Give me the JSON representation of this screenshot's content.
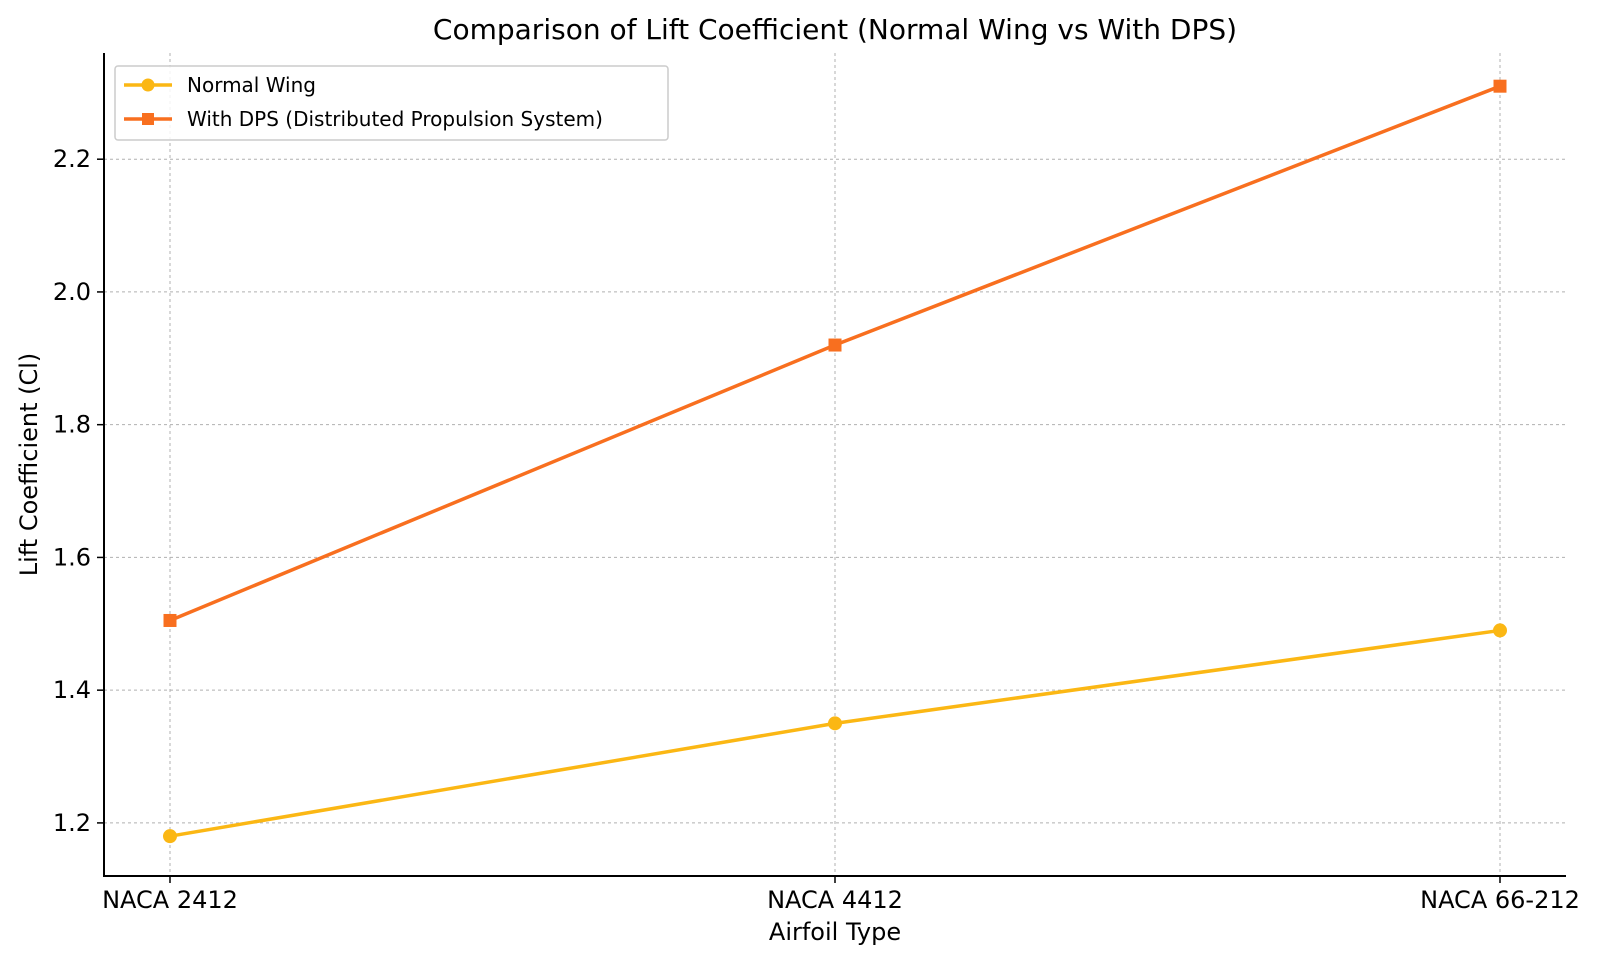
{
  "chart_data": {
    "type": "line",
    "title": "Comparison of Lift Coefficient (Normal Wing vs With DPS)",
    "xlabel": "Airfoil Type",
    "ylabel": "Lift Coefficient (Cl)",
    "categories": [
      "NACA 2412",
      "NACA 4412",
      "NACA 66-212"
    ],
    "ylim": [
      1.12,
      2.36
    ],
    "yticks": [
      1.2,
      1.4,
      1.6,
      1.8,
      2.0,
      2.2
    ],
    "ytick_labels": [
      "1.2",
      "1.4",
      "1.6",
      "1.8",
      "2.0",
      "2.2"
    ],
    "grid": true,
    "legend_position": "top-left",
    "series": [
      {
        "name": "Normal Wing",
        "values": [
          1.18,
          1.35,
          1.49
        ],
        "color": "#FBB714",
        "marker": "circle"
      },
      {
        "name": "With DPS (Distributed Propulsion System)",
        "values": [
          1.505,
          1.92,
          2.31
        ],
        "color": "#F86F1F",
        "marker": "square"
      }
    ]
  }
}
